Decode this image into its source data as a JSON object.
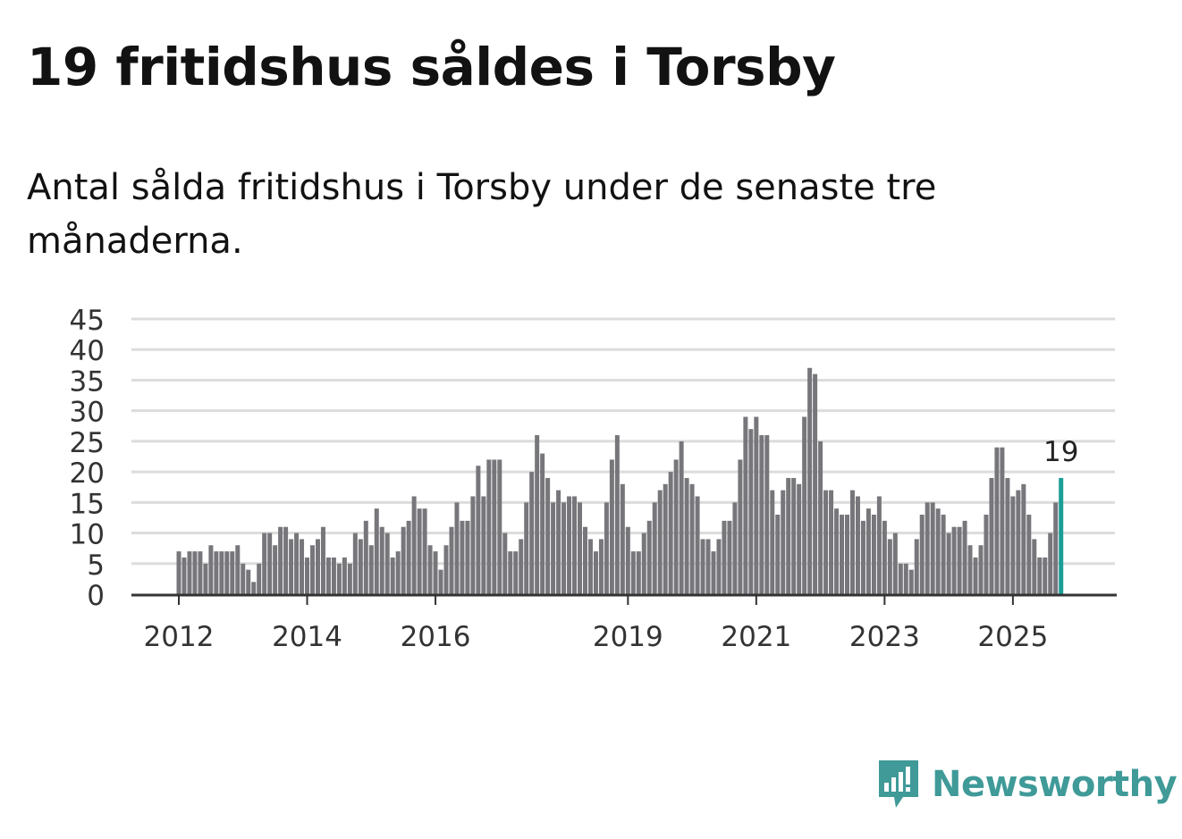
{
  "title": "19 fritidshus såldes i Torsby",
  "subtitle": "Antal sålda fritidshus i Torsby under de senaste tre månaderna.",
  "brand": {
    "name": "Newsworthy",
    "color": "#3f9a98",
    "icon": "newsworthy-logo-icon"
  },
  "chart_data": {
    "type": "bar",
    "x_start": "2012-01",
    "frequency": "monthly",
    "values": [
      7,
      6,
      7,
      7,
      7,
      5,
      8,
      7,
      7,
      7,
      7,
      8,
      5,
      4,
      2,
      5,
      10,
      10,
      8,
      11,
      11,
      9,
      10,
      9,
      6,
      8,
      9,
      11,
      6,
      6,
      5,
      6,
      5,
      10,
      9,
      12,
      8,
      14,
      11,
      10,
      6,
      7,
      11,
      12,
      16,
      14,
      14,
      8,
      7,
      4,
      8,
      11,
      15,
      12,
      12,
      16,
      21,
      16,
      22,
      22,
      22,
      10,
      7,
      7,
      9,
      15,
      20,
      26,
      23,
      19,
      15,
      17,
      15,
      16,
      16,
      15,
      11,
      9,
      7,
      9,
      15,
      22,
      26,
      18,
      11,
      7,
      7,
      10,
      12,
      15,
      17,
      18,
      20,
      22,
      25,
      19,
      18,
      16,
      9,
      9,
      7,
      9,
      12,
      12,
      15,
      22,
      29,
      27,
      29,
      26,
      26,
      17,
      13,
      17,
      19,
      19,
      18,
      29,
      37,
      36,
      25,
      17,
      17,
      14,
      13,
      13,
      17,
      16,
      12,
      14,
      13,
      16,
      12,
      9,
      10,
      5,
      5,
      4,
      9,
      13,
      15,
      15,
      14,
      13,
      10,
      11,
      11,
      12,
      8,
      6,
      8,
      13,
      19,
      24,
      24,
      19,
      16,
      17,
      18,
      13,
      9,
      6,
      6,
      10,
      15,
      19
    ],
    "highlight_last": {
      "value": "19",
      "color": "#1a9e95"
    },
    "bar_color": "#77767b",
    "y_ticks": [
      "0",
      "5",
      "10",
      "15",
      "20",
      "25",
      "30",
      "35",
      "40",
      "45"
    ],
    "ylim": [
      0,
      45
    ],
    "x_ticks": [
      {
        "label": "2012",
        "year": 2012
      },
      {
        "label": "2014",
        "year": 2014
      },
      {
        "label": "2016",
        "year": 2016
      },
      {
        "label": "2019",
        "year": 2019
      },
      {
        "label": "2021",
        "year": 2021
      },
      {
        "label": "2023",
        "year": 2023
      },
      {
        "label": "2025",
        "year": 2025
      }
    ],
    "grid": true,
    "legend": "none"
  }
}
